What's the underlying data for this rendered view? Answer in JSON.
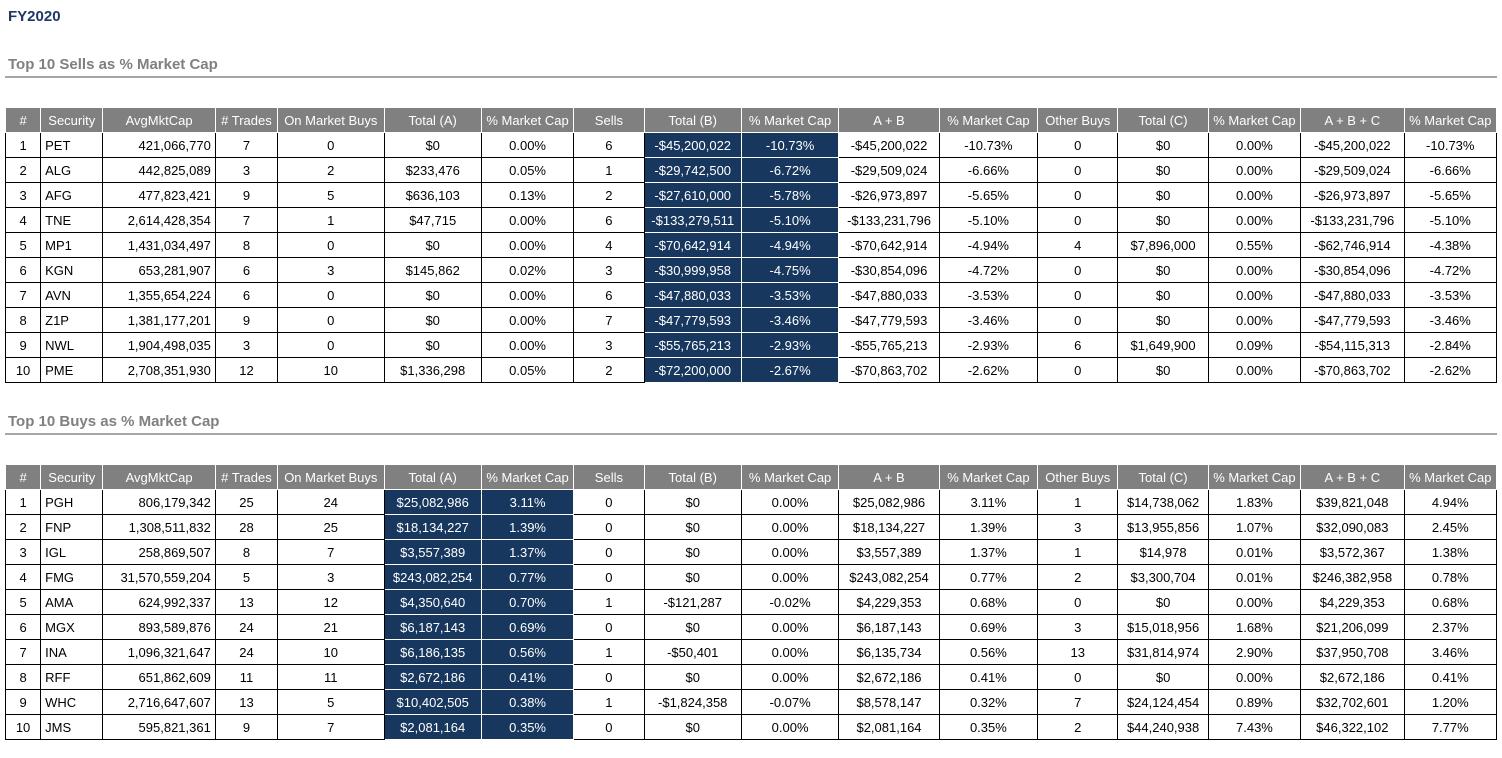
{
  "page_title": "FY2020",
  "colors": {
    "title": "#1F3864",
    "heading": "#808080",
    "header_bg": "#808080",
    "header_text": "#FFFFFF",
    "highlight_bg": "#17375E",
    "highlight_text": "#FFFFFF",
    "border": "#000000",
    "heading_rule": "#A6A6A6"
  },
  "sections": [
    {
      "heading": "Top 10 Sells as % Market Cap",
      "columns": [
        "#",
        "Security",
        "AvgMktCap",
        "# Trades",
        "On Market Buys",
        "Total (A)",
        "% Market Cap",
        "Sells",
        "Total (B)",
        "% Market Cap",
        "A + B",
        "% Market Cap",
        "Other Buys",
        "Total (C)",
        "% Market Cap",
        "A + B + C",
        "% Market Cap"
      ],
      "highlight_columns": [
        8,
        9
      ],
      "rows": [
        [
          "1",
          "PET",
          "421,066,770",
          "7",
          "0",
          "$0",
          "0.00%",
          "6",
          "-$45,200,022",
          "-10.73%",
          "-$45,200,022",
          "-10.73%",
          "0",
          "$0",
          "0.00%",
          "-$45,200,022",
          "-10.73%"
        ],
        [
          "2",
          "ALG",
          "442,825,089",
          "3",
          "2",
          "$233,476",
          "0.05%",
          "1",
          "-$29,742,500",
          "-6.72%",
          "-$29,509,024",
          "-6.66%",
          "0",
          "$0",
          "0.00%",
          "-$29,509,024",
          "-6.66%"
        ],
        [
          "3",
          "AFG",
          "477,823,421",
          "9",
          "5",
          "$636,103",
          "0.13%",
          "2",
          "-$27,610,000",
          "-5.78%",
          "-$26,973,897",
          "-5.65%",
          "0",
          "$0",
          "0.00%",
          "-$26,973,897",
          "-5.65%"
        ],
        [
          "4",
          "TNE",
          "2,614,428,354",
          "7",
          "1",
          "$47,715",
          "0.00%",
          "6",
          "-$133,279,511",
          "-5.10%",
          "-$133,231,796",
          "-5.10%",
          "0",
          "$0",
          "0.00%",
          "-$133,231,796",
          "-5.10%"
        ],
        [
          "5",
          "MP1",
          "1,431,034,497",
          "8",
          "0",
          "$0",
          "0.00%",
          "4",
          "-$70,642,914",
          "-4.94%",
          "-$70,642,914",
          "-4.94%",
          "4",
          "$7,896,000",
          "0.55%",
          "-$62,746,914",
          "-4.38%"
        ],
        [
          "6",
          "KGN",
          "653,281,907",
          "6",
          "3",
          "$145,862",
          "0.02%",
          "3",
          "-$30,999,958",
          "-4.75%",
          "-$30,854,096",
          "-4.72%",
          "0",
          "$0",
          "0.00%",
          "-$30,854,096",
          "-4.72%"
        ],
        [
          "7",
          "AVN",
          "1,355,654,224",
          "6",
          "0",
          "$0",
          "0.00%",
          "6",
          "-$47,880,033",
          "-3.53%",
          "-$47,880,033",
          "-3.53%",
          "0",
          "$0",
          "0.00%",
          "-$47,880,033",
          "-3.53%"
        ],
        [
          "8",
          "Z1P",
          "1,381,177,201",
          "9",
          "0",
          "$0",
          "0.00%",
          "7",
          "-$47,779,593",
          "-3.46%",
          "-$47,779,593",
          "-3.46%",
          "0",
          "$0",
          "0.00%",
          "-$47,779,593",
          "-3.46%"
        ],
        [
          "9",
          "NWL",
          "1,904,498,035",
          "3",
          "0",
          "$0",
          "0.00%",
          "3",
          "-$55,765,213",
          "-2.93%",
          "-$55,765,213",
          "-2.93%",
          "6",
          "$1,649,900",
          "0.09%",
          "-$54,115,313",
          "-2.84%"
        ],
        [
          "10",
          "PME",
          "2,708,351,930",
          "12",
          "10",
          "$1,336,298",
          "0.05%",
          "2",
          "-$72,200,000",
          "-2.67%",
          "-$70,863,702",
          "-2.62%",
          "0",
          "$0",
          "0.00%",
          "-$70,863,702",
          "-2.62%"
        ]
      ]
    },
    {
      "heading": "Top 10 Buys as % Market Cap",
      "columns": [
        "#",
        "Security",
        "AvgMktCap",
        "# Trades",
        "On Market Buys",
        "Total (A)",
        "% Market Cap",
        "Sells",
        "Total (B)",
        "% Market Cap",
        "A + B",
        "% Market Cap",
        "Other Buys",
        "Total (C)",
        "% Market Cap",
        "A + B + C",
        "% Market Cap"
      ],
      "highlight_columns": [
        5,
        6
      ],
      "rows": [
        [
          "1",
          "PGH",
          "806,179,342",
          "25",
          "24",
          "$25,082,986",
          "3.11%",
          "0",
          "$0",
          "0.00%",
          "$25,082,986",
          "3.11%",
          "1",
          "$14,738,062",
          "1.83%",
          "$39,821,048",
          "4.94%"
        ],
        [
          "2",
          "FNP",
          "1,308,511,832",
          "28",
          "25",
          "$18,134,227",
          "1.39%",
          "0",
          "$0",
          "0.00%",
          "$18,134,227",
          "1.39%",
          "3",
          "$13,955,856",
          "1.07%",
          "$32,090,083",
          "2.45%"
        ],
        [
          "3",
          "IGL",
          "258,869,507",
          "8",
          "7",
          "$3,557,389",
          "1.37%",
          "0",
          "$0",
          "0.00%",
          "$3,557,389",
          "1.37%",
          "1",
          "$14,978",
          "0.01%",
          "$3,572,367",
          "1.38%"
        ],
        [
          "4",
          "FMG",
          "31,570,559,204",
          "5",
          "3",
          "$243,082,254",
          "0.77%",
          "0",
          "$0",
          "0.00%",
          "$243,082,254",
          "0.77%",
          "2",
          "$3,300,704",
          "0.01%",
          "$246,382,958",
          "0.78%"
        ],
        [
          "5",
          "AMA",
          "624,992,337",
          "13",
          "12",
          "$4,350,640",
          "0.70%",
          "1",
          "-$121,287",
          "-0.02%",
          "$4,229,353",
          "0.68%",
          "0",
          "$0",
          "0.00%",
          "$4,229,353",
          "0.68%"
        ],
        [
          "6",
          "MGX",
          "893,589,876",
          "24",
          "21",
          "$6,187,143",
          "0.69%",
          "0",
          "$0",
          "0.00%",
          "$6,187,143",
          "0.69%",
          "3",
          "$15,018,956",
          "1.68%",
          "$21,206,099",
          "2.37%"
        ],
        [
          "7",
          "INA",
          "1,096,321,647",
          "24",
          "10",
          "$6,186,135",
          "0.56%",
          "1",
          "-$50,401",
          "0.00%",
          "$6,135,734",
          "0.56%",
          "13",
          "$31,814,974",
          "2.90%",
          "$37,950,708",
          "3.46%"
        ],
        [
          "8",
          "RFF",
          "651,862,609",
          "11",
          "11",
          "$2,672,186",
          "0.41%",
          "0",
          "$0",
          "0.00%",
          "$2,672,186",
          "0.41%",
          "0",
          "$0",
          "0.00%",
          "$2,672,186",
          "0.41%"
        ],
        [
          "9",
          "WHC",
          "2,716,647,607",
          "13",
          "5",
          "$10,402,505",
          "0.38%",
          "1",
          "-$1,824,358",
          "-0.07%",
          "$8,578,147",
          "0.32%",
          "7",
          "$24,124,454",
          "0.89%",
          "$32,702,601",
          "1.20%"
        ],
        [
          "10",
          "JMS",
          "595,821,361",
          "9",
          "7",
          "$2,081,164",
          "0.35%",
          "0",
          "$0",
          "0.00%",
          "$2,081,164",
          "0.35%",
          "2",
          "$44,240,938",
          "7.43%",
          "$46,322,102",
          "7.77%"
        ]
      ]
    }
  ]
}
